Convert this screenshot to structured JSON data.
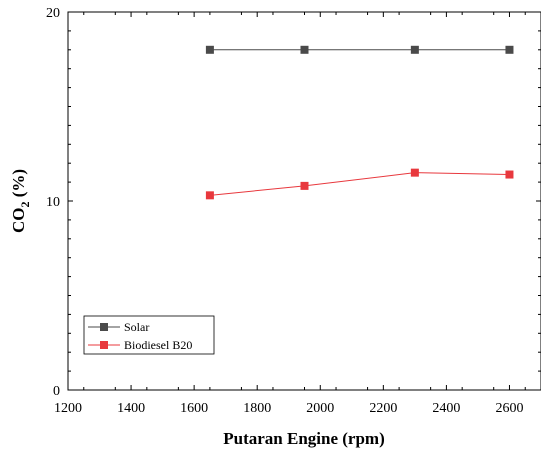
{
  "chart_data": {
    "type": "line",
    "xlabel": "Putaran Engine (rpm)",
    "ylabel_main": "CO",
    "ylabel_sub": "2",
    "ylabel_rest": " (%)",
    "xlim": [
      1200,
      2700
    ],
    "ylim": [
      0,
      20
    ],
    "x_ticks": [
      1200,
      1400,
      1600,
      1800,
      2000,
      2200,
      2400,
      2600
    ],
    "y_ticks": [
      0,
      10,
      20
    ],
    "legend_position": "bottom-left",
    "grid": false,
    "series": [
      {
        "name": "Solar",
        "color": "#4a4a4a",
        "x": [
          1650,
          1950,
          2300,
          2600
        ],
        "y": [
          18.0,
          18.0,
          18.0,
          18.0
        ]
      },
      {
        "name": "Biodiesel B20",
        "color": "#e8383d",
        "x": [
          1650,
          1950,
          2300,
          2600
        ],
        "y": [
          10.3,
          10.8,
          11.5,
          11.4
        ]
      }
    ]
  }
}
